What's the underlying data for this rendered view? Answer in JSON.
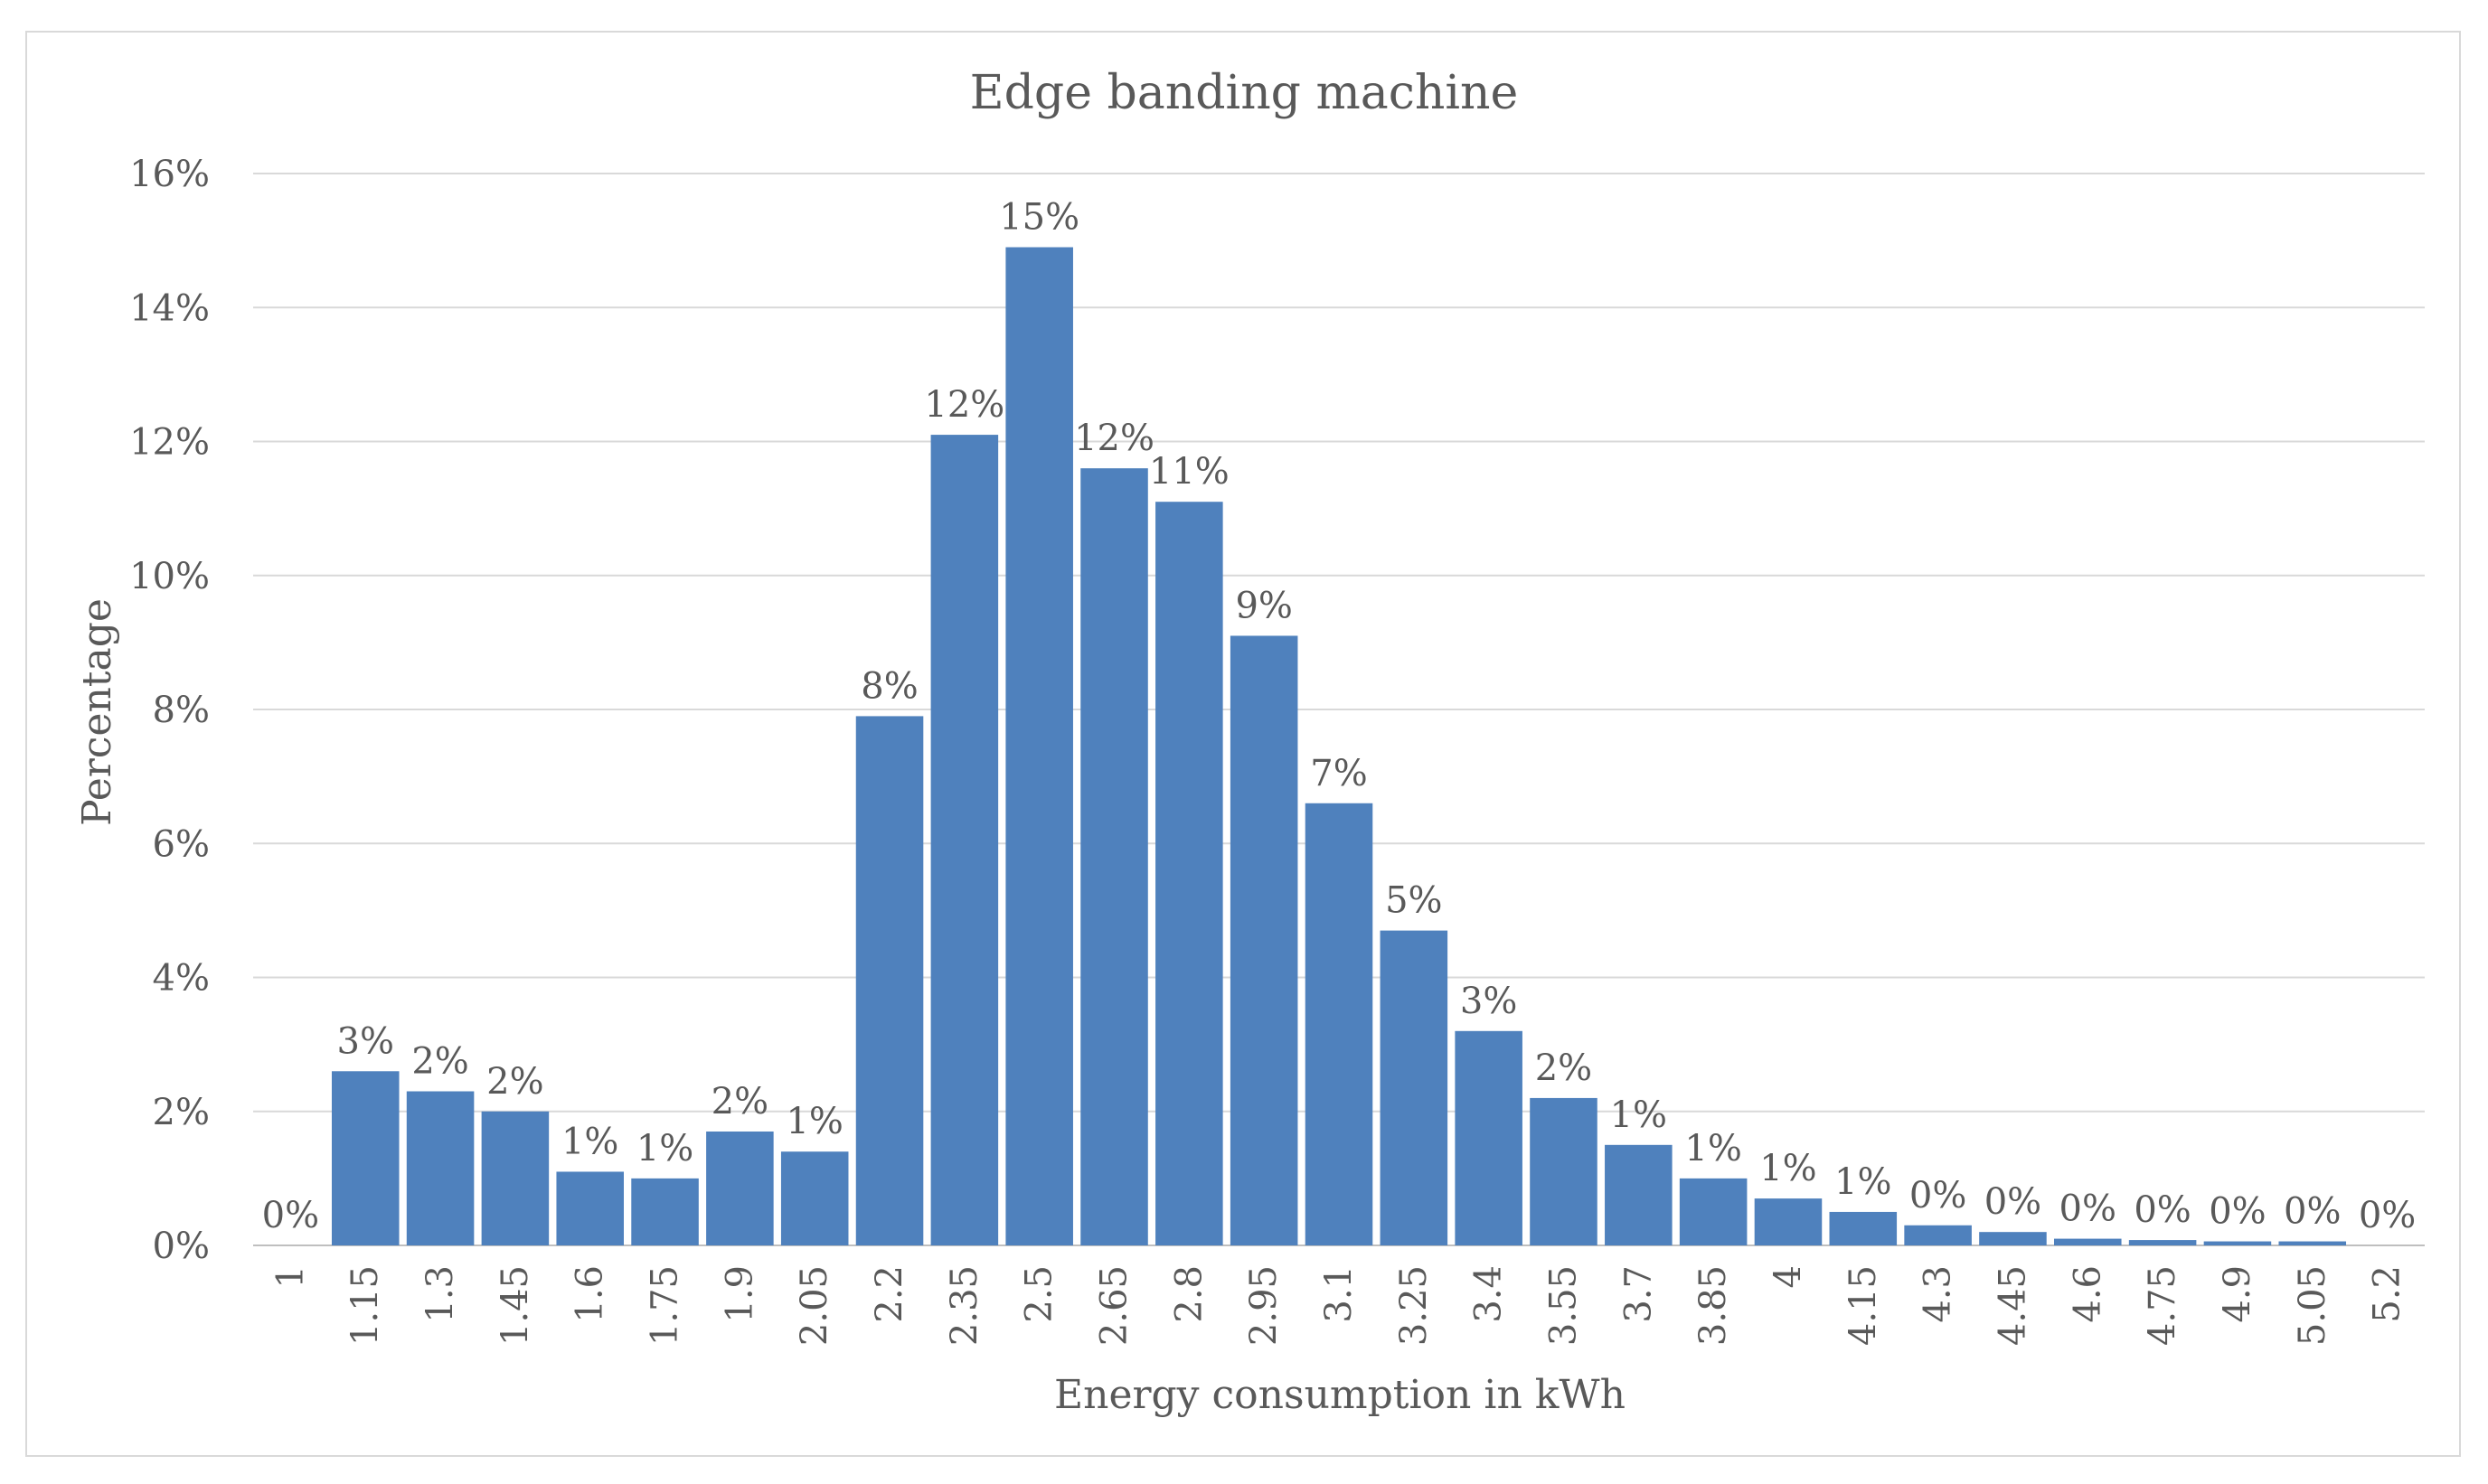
{
  "chart_data": {
    "type": "bar",
    "title": "Edge banding machine",
    "xlabel": "Energy consumption in kWh",
    "ylabel": "Percentage",
    "ylim": [
      0,
      16
    ],
    "y_ticks": [
      "0%",
      "2%",
      "4%",
      "6%",
      "8%",
      "10%",
      "12%",
      "14%",
      "16%"
    ],
    "grid": true,
    "legend": "none",
    "bar_color": "#4f81bd",
    "categories": [
      "1",
      "1.15",
      "1.3",
      "1.45",
      "1.6",
      "1.75",
      "1.9",
      "2.05",
      "2.2",
      "2.35",
      "2.5",
      "2.65",
      "2.8",
      "2.95",
      "3.1",
      "3.25",
      "3.4",
      "3.55",
      "3.7",
      "3.85",
      "4",
      "4.15",
      "4.3",
      "4.45",
      "4.6",
      "4.75",
      "4.9",
      "5.05",
      "5.2"
    ],
    "values": [
      0,
      2.6,
      2.3,
      2.0,
      1.1,
      1.0,
      1.7,
      1.4,
      7.9,
      12.1,
      14.9,
      11.6,
      11.1,
      9.1,
      6.6,
      4.7,
      3.2,
      2.2,
      1.5,
      1.0,
      0.7,
      0.5,
      0.3,
      0.2,
      0.1,
      0.08,
      0.06,
      0.06,
      0
    ],
    "data_labels": [
      "0%",
      "3%",
      "2%",
      "2%",
      "1%",
      "1%",
      "2%",
      "1%",
      "8%",
      "12%",
      "15%",
      "12%",
      "11%",
      "9%",
      "7%",
      "5%",
      "3%",
      "2%",
      "1%",
      "1%",
      "1%",
      "1%",
      "0%",
      "0%",
      "0%",
      "0%",
      "0%",
      "0%",
      "0%"
    ]
  }
}
